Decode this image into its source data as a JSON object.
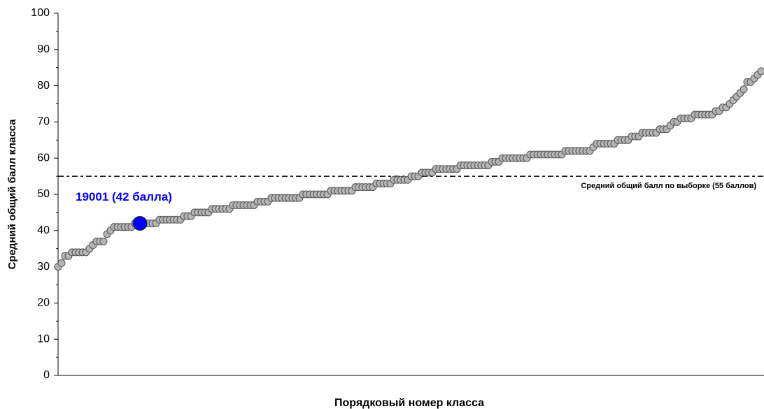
{
  "chart_data": {
    "type": "scatter",
    "y_label": "Средний общий балл класса",
    "x_label": "Порядковый номер класса",
    "ylim": [
      0,
      100
    ],
    "yticks": [
      0,
      10,
      20,
      30,
      40,
      50,
      60,
      70,
      80,
      90,
      100
    ],
    "color": "#b4b4b4",
    "values": [
      30,
      31,
      33,
      33,
      34,
      34,
      34,
      34,
      34,
      35,
      36,
      37,
      37,
      37,
      39,
      40,
      41,
      41,
      41,
      41,
      41,
      41,
      42,
      42,
      42,
      42,
      42,
      42,
      42,
      43,
      43,
      43,
      43,
      43,
      43,
      43,
      44,
      44,
      44,
      45,
      45,
      45,
      45,
      45,
      46,
      46,
      46,
      46,
      46,
      46,
      47,
      47,
      47,
      47,
      47,
      47,
      47,
      48,
      48,
      48,
      48,
      49,
      49,
      49,
      49,
      49,
      49,
      49,
      49,
      49,
      50,
      50,
      50,
      50,
      50,
      50,
      50,
      50,
      51,
      51,
      51,
      51,
      51,
      51,
      51,
      52,
      52,
      52,
      52,
      52,
      52,
      53,
      53,
      53,
      53,
      53,
      54,
      54,
      54,
      54,
      54,
      55,
      55,
      55,
      56,
      56,
      56,
      56,
      57,
      57,
      57,
      57,
      57,
      57,
      57,
      58,
      58,
      58,
      58,
      58,
      58,
      58,
      58,
      58,
      59,
      59,
      59,
      60,
      60,
      60,
      60,
      60,
      60,
      60,
      60,
      61,
      61,
      61,
      61,
      61,
      61,
      61,
      61,
      61,
      61,
      62,
      62,
      62,
      62,
      62,
      62,
      62,
      62,
      63,
      64,
      64,
      64,
      64,
      64,
      64,
      65,
      65,
      65,
      65,
      66,
      66,
      66,
      67,
      67,
      67,
      67,
      67,
      68,
      68,
      68,
      69,
      70,
      70,
      71,
      71,
      71,
      71,
      72,
      72,
      72,
      72,
      72,
      72,
      73,
      73,
      74,
      74,
      75,
      76,
      77,
      78,
      79,
      81,
      81,
      82,
      83,
      84
    ],
    "highlight": {
      "index": 23,
      "label": "19001 (42 балла)",
      "color": "#0000ff"
    },
    "reference_line": {
      "value": 55,
      "label": "Средний общий балл по выборке (55 баллов)"
    }
  }
}
